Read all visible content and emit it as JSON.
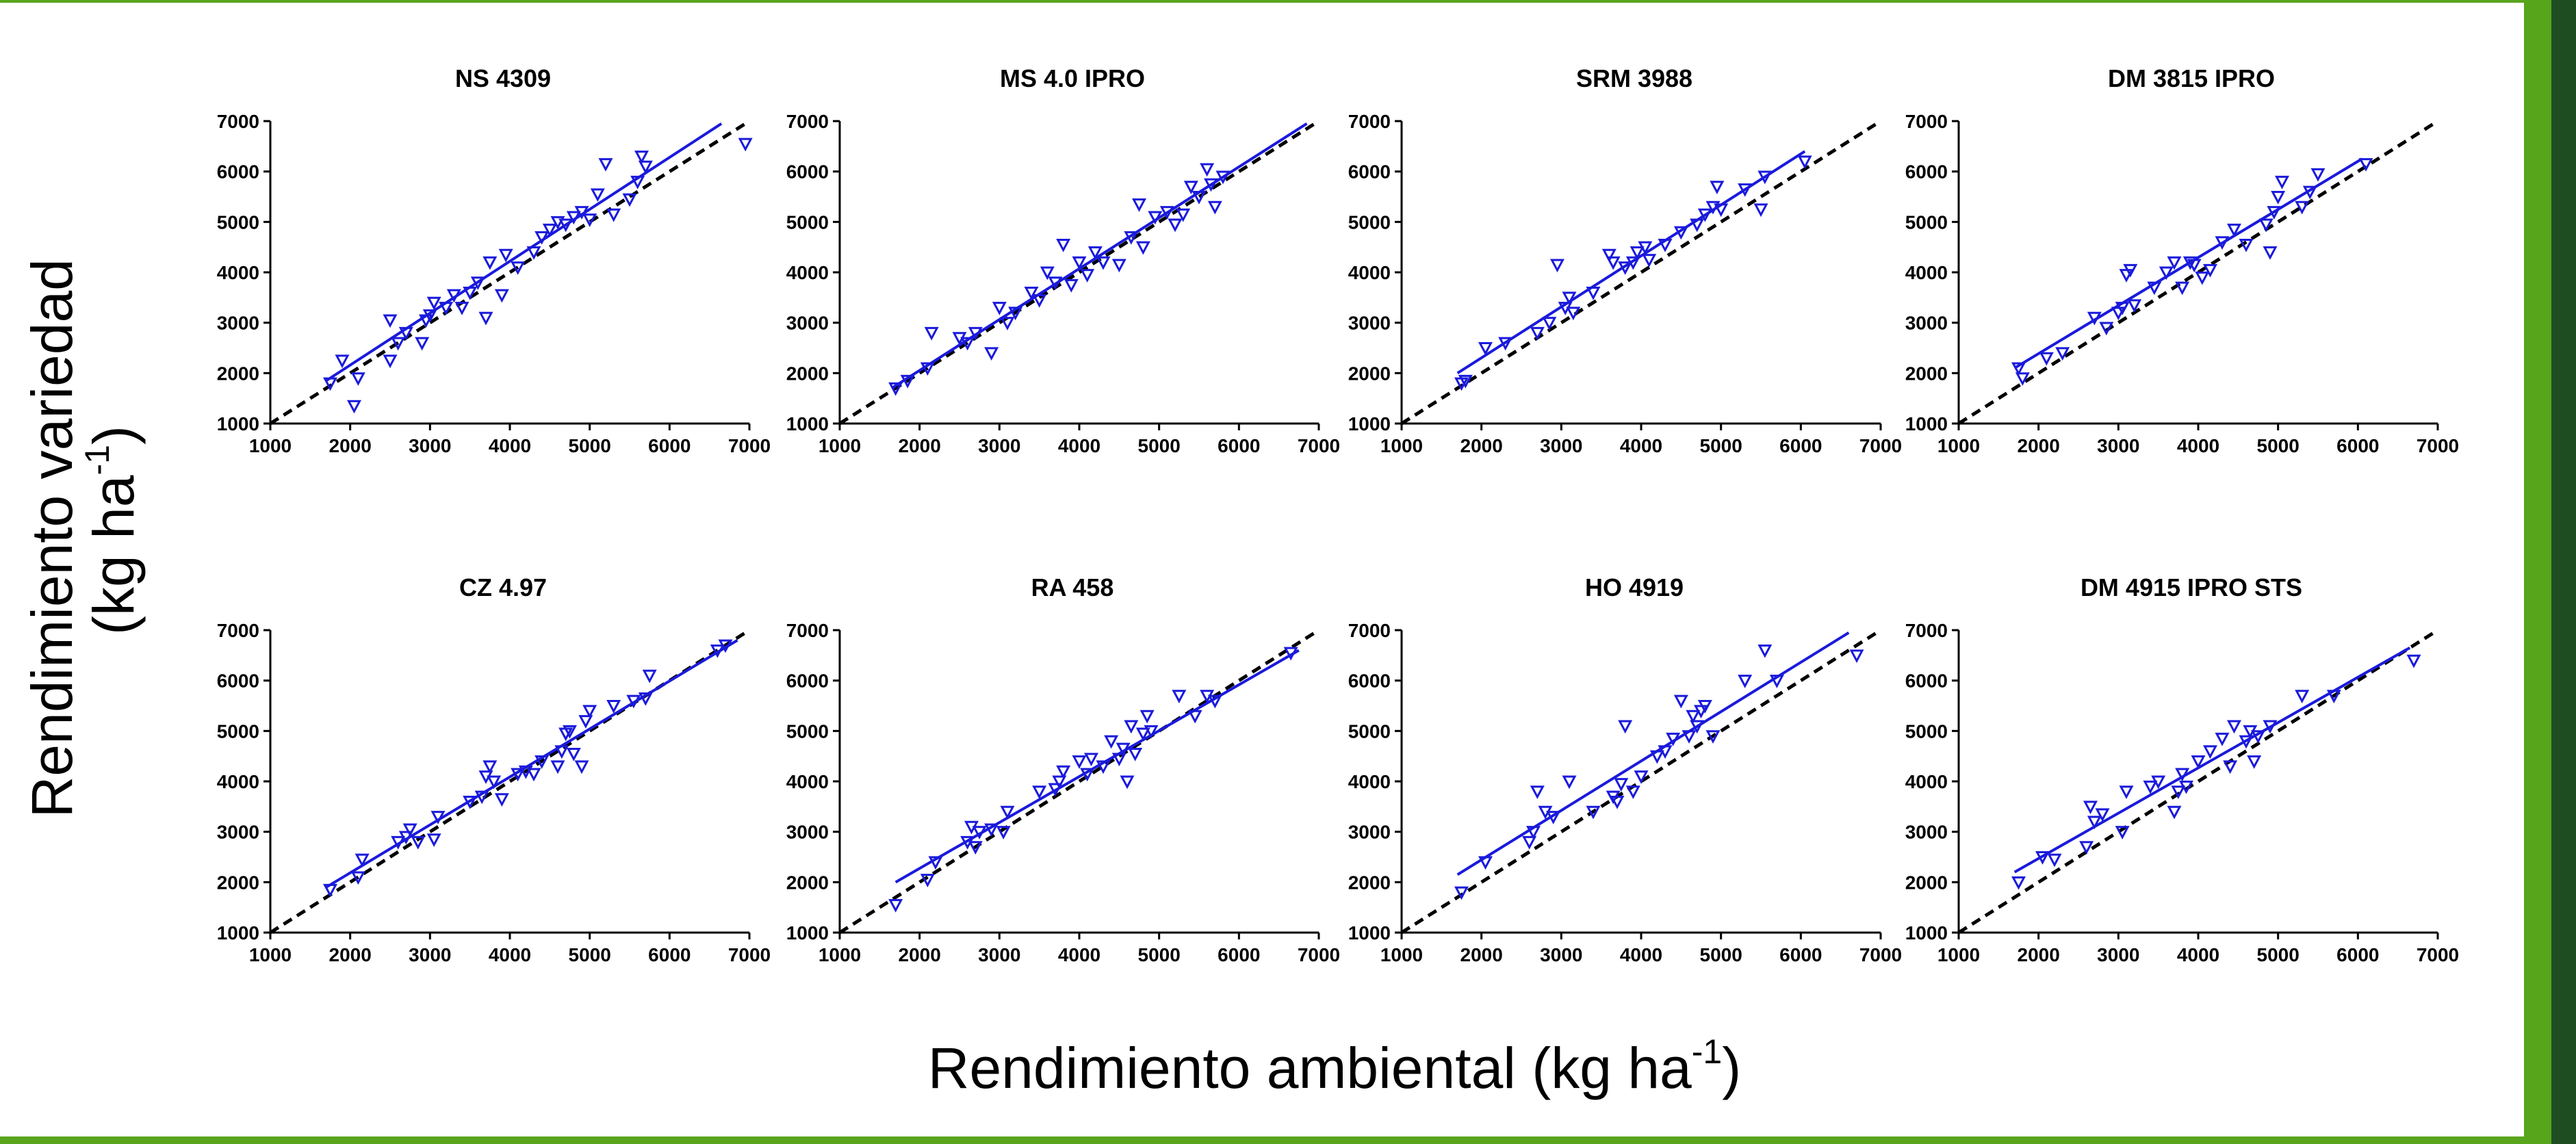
{
  "figure": {
    "ylabel_line1": "Rendimiento variedad",
    "ylabel_line2_prefix": "(kg ha",
    "ylabel_sup": "-1",
    "ylabel_suffix": ")",
    "xlabel_prefix": "Rendimiento ambiental (kg ha",
    "xlabel_sup": "-1",
    "xlabel_suffix": ")"
  },
  "colors": {
    "series": "#1a1adc",
    "reference_line": "#000000",
    "accent_green": "#5aa51e",
    "accent_dark_green": "#1f4d22"
  },
  "chart_data": [
    {
      "type": "scatter",
      "title": "NS 4309",
      "xlim": [
        1000,
        7000
      ],
      "ylim": [
        1000,
        7000
      ],
      "xticks": [
        1000,
        2000,
        3000,
        4000,
        5000,
        6000,
        7000
      ],
      "yticks": [
        1000,
        2000,
        3000,
        4000,
        5000,
        6000,
        7000
      ],
      "reference_line": {
        "style": "dashed",
        "from": [
          1000,
          1000
        ],
        "to": [
          7000,
          7000
        ]
      },
      "fit_line": {
        "from": [
          1700,
          1850
        ],
        "to": [
          6650,
          6950
        ]
      },
      "points": [
        [
          1750,
          1800
        ],
        [
          1900,
          2250
        ],
        [
          2050,
          1350
        ],
        [
          2100,
          1900
        ],
        [
          2500,
          2250
        ],
        [
          2500,
          3050
        ],
        [
          2600,
          2600
        ],
        [
          2700,
          2800
        ],
        [
          2900,
          2600
        ],
        [
          2950,
          3050
        ],
        [
          3000,
          3150
        ],
        [
          3050,
          3400
        ],
        [
          3200,
          3300
        ],
        [
          3300,
          3550
        ],
        [
          3400,
          3300
        ],
        [
          3500,
          3600
        ],
        [
          3600,
          3800
        ],
        [
          3700,
          3100
        ],
        [
          3750,
          4200
        ],
        [
          3900,
          3550
        ],
        [
          3950,
          4350
        ],
        [
          4100,
          4100
        ],
        [
          4300,
          4400
        ],
        [
          4400,
          4700
        ],
        [
          4500,
          4850
        ],
        [
          4600,
          5000
        ],
        [
          4700,
          4950
        ],
        [
          4800,
          5100
        ],
        [
          4900,
          5200
        ],
        [
          5000,
          5050
        ],
        [
          5100,
          5550
        ],
        [
          5200,
          6150
        ],
        [
          5300,
          5150
        ],
        [
          5500,
          5450
        ],
        [
          5600,
          5800
        ],
        [
          5650,
          6300
        ],
        [
          5700,
          6100
        ],
        [
          6950,
          6550
        ]
      ]
    },
    {
      "type": "scatter",
      "title": "MS 4.0 IPRO",
      "xlim": [
        1000,
        7000
      ],
      "ylim": [
        1000,
        7000
      ],
      "xticks": [
        1000,
        2000,
        3000,
        4000,
        5000,
        6000,
        7000
      ],
      "yticks": [
        1000,
        2000,
        3000,
        4000,
        5000,
        6000,
        7000
      ],
      "reference_line": {
        "style": "dashed",
        "from": [
          1000,
          1000
        ],
        "to": [
          7000,
          7000
        ]
      },
      "fit_line": {
        "from": [
          1650,
          1700
        ],
        "to": [
          6850,
          6950
        ]
      },
      "points": [
        [
          1700,
          1700
        ],
        [
          1850,
          1850
        ],
        [
          2100,
          2100
        ],
        [
          2150,
          2800
        ],
        [
          2500,
          2700
        ],
        [
          2600,
          2600
        ],
        [
          2700,
          2800
        ],
        [
          2900,
          2400
        ],
        [
          3000,
          3300
        ],
        [
          3100,
          3000
        ],
        [
          3200,
          3200
        ],
        [
          3400,
          3600
        ],
        [
          3500,
          3450
        ],
        [
          3600,
          4000
        ],
        [
          3700,
          3800
        ],
        [
          3800,
          4550
        ],
        [
          3900,
          3750
        ],
        [
          4000,
          4200
        ],
        [
          4100,
          3950
        ],
        [
          4200,
          4400
        ],
        [
          4300,
          4200
        ],
        [
          4500,
          4150
        ],
        [
          4650,
          4700
        ],
        [
          4750,
          5350
        ],
        [
          4800,
          4500
        ],
        [
          4950,
          5100
        ],
        [
          5100,
          5200
        ],
        [
          5200,
          4950
        ],
        [
          5300,
          5150
        ],
        [
          5400,
          5700
        ],
        [
          5500,
          5500
        ],
        [
          5600,
          6050
        ],
        [
          5650,
          5750
        ],
        [
          5700,
          5300
        ],
        [
          5800,
          5900
        ]
      ]
    },
    {
      "type": "scatter",
      "title": "SRM 3988",
      "xlim": [
        1000,
        7000
      ],
      "ylim": [
        1000,
        7000
      ],
      "xticks": [
        1000,
        2000,
        3000,
        4000,
        5000,
        6000,
        7000
      ],
      "yticks": [
        1000,
        2000,
        3000,
        4000,
        5000,
        6000,
        7000
      ],
      "reference_line": {
        "style": "dashed",
        "from": [
          1000,
          1000
        ],
        "to": [
          7000,
          7000
        ]
      },
      "fit_line": {
        "from": [
          1700,
          2000
        ],
        "to": [
          6050,
          6400
        ]
      },
      "points": [
        [
          1750,
          1800
        ],
        [
          1800,
          1850
        ],
        [
          2050,
          2500
        ],
        [
          2300,
          2600
        ],
        [
          2700,
          2800
        ],
        [
          2850,
          3000
        ],
        [
          2950,
          4150
        ],
        [
          3050,
          3300
        ],
        [
          3100,
          3500
        ],
        [
          3150,
          3200
        ],
        [
          3400,
          3600
        ],
        [
          3600,
          4350
        ],
        [
          3650,
          4200
        ],
        [
          3800,
          4100
        ],
        [
          3900,
          4200
        ],
        [
          3950,
          4400
        ],
        [
          4050,
          4500
        ],
        [
          4100,
          4250
        ],
        [
          4300,
          4550
        ],
        [
          4500,
          4800
        ],
        [
          4700,
          4950
        ],
        [
          4800,
          5150
        ],
        [
          4900,
          5300
        ],
        [
          4950,
          5700
        ],
        [
          5000,
          5250
        ],
        [
          5300,
          5650
        ],
        [
          5500,
          5250
        ],
        [
          5550,
          5900
        ],
        [
          6050,
          6200
        ]
      ]
    },
    {
      "type": "scatter",
      "title": "DM 3815 IPRO",
      "xlim": [
        1000,
        7000
      ],
      "ylim": [
        1000,
        7000
      ],
      "xticks": [
        1000,
        2000,
        3000,
        4000,
        5000,
        6000,
        7000
      ],
      "yticks": [
        1000,
        2000,
        3000,
        4000,
        5000,
        6000,
        7000
      ],
      "reference_line": {
        "style": "dashed",
        "from": [
          1000,
          1000
        ],
        "to": [
          7000,
          7000
        ]
      },
      "fit_line": {
        "from": [
          1700,
          2100
        ],
        "to": [
          6050,
          6250
        ]
      },
      "points": [
        [
          1750,
          2100
        ],
        [
          1800,
          1900
        ],
        [
          2100,
          2300
        ],
        [
          2300,
          2400
        ],
        [
          2700,
          3100
        ],
        [
          2850,
          2900
        ],
        [
          3000,
          3200
        ],
        [
          3050,
          3300
        ],
        [
          3100,
          3950
        ],
        [
          3150,
          4050
        ],
        [
          3200,
          3350
        ],
        [
          3450,
          3700
        ],
        [
          3600,
          4000
        ],
        [
          3700,
          4200
        ],
        [
          3800,
          3700
        ],
        [
          3900,
          4200
        ],
        [
          3950,
          4150
        ],
        [
          4050,
          3900
        ],
        [
          4150,
          4050
        ],
        [
          4300,
          4600
        ],
        [
          4450,
          4850
        ],
        [
          4600,
          4550
        ],
        [
          4850,
          4950
        ],
        [
          4900,
          4400
        ],
        [
          4950,
          5200
        ],
        [
          5000,
          5500
        ],
        [
          5050,
          5800
        ],
        [
          5300,
          5300
        ],
        [
          5400,
          5600
        ],
        [
          5500,
          5950
        ],
        [
          6100,
          6150
        ]
      ]
    },
    {
      "type": "scatter",
      "title": "CZ 4.97",
      "xlim": [
        1000,
        7000
      ],
      "ylim": [
        1000,
        7000
      ],
      "xticks": [
        1000,
        2000,
        3000,
        4000,
        5000,
        6000,
        7000
      ],
      "yticks": [
        1000,
        2000,
        3000,
        4000,
        5000,
        6000,
        7000
      ],
      "reference_line": {
        "style": "dashed",
        "from": [
          1000,
          1000
        ],
        "to": [
          7000,
          7000
        ]
      },
      "fit_line": {
        "from": [
          1700,
          1900
        ],
        "to": [
          6850,
          6800
        ]
      },
      "points": [
        [
          1750,
          1850
        ],
        [
          2100,
          2100
        ],
        [
          2150,
          2450
        ],
        [
          2600,
          2800
        ],
        [
          2700,
          2900
        ],
        [
          2750,
          3050
        ],
        [
          2850,
          2800
        ],
        [
          3050,
          2850
        ],
        [
          3100,
          3300
        ],
        [
          3500,
          3600
        ],
        [
          3650,
          3700
        ],
        [
          3700,
          4100
        ],
        [
          3750,
          4300
        ],
        [
          3800,
          4000
        ],
        [
          3900,
          3650
        ],
        [
          4100,
          4150
        ],
        [
          4200,
          4200
        ],
        [
          4300,
          4150
        ],
        [
          4400,
          4400
        ],
        [
          4600,
          4300
        ],
        [
          4650,
          4600
        ],
        [
          4700,
          4950
        ],
        [
          4750,
          5000
        ],
        [
          4800,
          4550
        ],
        [
          4900,
          4300
        ],
        [
          4950,
          5200
        ],
        [
          5000,
          5400
        ],
        [
          5300,
          5500
        ],
        [
          5550,
          5600
        ],
        [
          5700,
          5650
        ],
        [
          5750,
          6100
        ],
        [
          6600,
          6600
        ],
        [
          6700,
          6700
        ]
      ]
    },
    {
      "type": "scatter",
      "title": "RA 458",
      "xlim": [
        1000,
        7000
      ],
      "ylim": [
        1000,
        7000
      ],
      "xticks": [
        1000,
        2000,
        3000,
        4000,
        5000,
        6000,
        7000
      ],
      "yticks": [
        1000,
        2000,
        3000,
        4000,
        5000,
        6000,
        7000
      ],
      "reference_line": {
        "style": "dashed",
        "from": [
          1000,
          1000
        ],
        "to": [
          7000,
          7000
        ]
      },
      "fit_line": {
        "from": [
          1700,
          2000
        ],
        "to": [
          6750,
          6600
        ]
      },
      "points": [
        [
          1700,
          1550
        ],
        [
          2100,
          2050
        ],
        [
          2200,
          2400
        ],
        [
          2600,
          2800
        ],
        [
          2650,
          3100
        ],
        [
          2700,
          2700
        ],
        [
          2750,
          3000
        ],
        [
          2900,
          3050
        ],
        [
          3050,
          3000
        ],
        [
          3100,
          3400
        ],
        [
          3500,
          3800
        ],
        [
          3700,
          3850
        ],
        [
          3750,
          4000
        ],
        [
          3800,
          4200
        ],
        [
          4000,
          4400
        ],
        [
          4100,
          4150
        ],
        [
          4150,
          4450
        ],
        [
          4300,
          4300
        ],
        [
          4400,
          4800
        ],
        [
          4500,
          4450
        ],
        [
          4550,
          4650
        ],
        [
          4600,
          4000
        ],
        [
          4650,
          5100
        ],
        [
          4700,
          4550
        ],
        [
          4800,
          4950
        ],
        [
          4850,
          5300
        ],
        [
          4900,
          5000
        ],
        [
          5250,
          5700
        ],
        [
          5450,
          5300
        ],
        [
          5600,
          5700
        ],
        [
          5700,
          5600
        ],
        [
          6650,
          6550
        ]
      ]
    },
    {
      "type": "scatter",
      "title": "HO 4919",
      "xlim": [
        1000,
        7000
      ],
      "ylim": [
        1000,
        7000
      ],
      "xticks": [
        1000,
        2000,
        3000,
        4000,
        5000,
        6000,
        7000
      ],
      "yticks": [
        1000,
        2000,
        3000,
        4000,
        5000,
        6000,
        7000
      ],
      "reference_line": {
        "style": "dashed",
        "from": [
          1000,
          1000
        ],
        "to": [
          7000,
          7000
        ]
      },
      "fit_line": {
        "from": [
          1700,
          2150
        ],
        "to": [
          6600,
          6950
        ]
      },
      "points": [
        [
          1750,
          1800
        ],
        [
          2050,
          2400
        ],
        [
          2600,
          2800
        ],
        [
          2650,
          3000
        ],
        [
          2700,
          3800
        ],
        [
          2800,
          3400
        ],
        [
          2900,
          3300
        ],
        [
          3100,
          4000
        ],
        [
          3400,
          3400
        ],
        [
          3650,
          3700
        ],
        [
          3700,
          3600
        ],
        [
          3750,
          3950
        ],
        [
          3800,
          5100
        ],
        [
          3900,
          3800
        ],
        [
          4000,
          4100
        ],
        [
          4200,
          4500
        ],
        [
          4300,
          4600
        ],
        [
          4400,
          4850
        ],
        [
          4500,
          5600
        ],
        [
          4600,
          4900
        ],
        [
          4650,
          5300
        ],
        [
          4700,
          5100
        ],
        [
          4750,
          5400
        ],
        [
          4800,
          5500
        ],
        [
          4900,
          4900
        ],
        [
          5300,
          6000
        ],
        [
          5550,
          6600
        ],
        [
          5700,
          6000
        ],
        [
          6700,
          6500
        ]
      ]
    },
    {
      "type": "scatter",
      "title": "DM 4915 IPRO STS",
      "xlim": [
        1000,
        7000
      ],
      "ylim": [
        1000,
        7000
      ],
      "xticks": [
        1000,
        2000,
        3000,
        4000,
        5000,
        6000,
        7000
      ],
      "yticks": [
        1000,
        2000,
        3000,
        4000,
        5000,
        6000,
        7000
      ],
      "reference_line": {
        "style": "dashed",
        "from": [
          1000,
          1000
        ],
        "to": [
          7000,
          7000
        ]
      },
      "fit_line": {
        "from": [
          1700,
          2200
        ],
        "to": [
          6650,
          6650
        ]
      },
      "points": [
        [
          1750,
          2000
        ],
        [
          2050,
          2500
        ],
        [
          2200,
          2450
        ],
        [
          2600,
          2700
        ],
        [
          2650,
          3500
        ],
        [
          2700,
          3200
        ],
        [
          2800,
          3350
        ],
        [
          3050,
          3000
        ],
        [
          3100,
          3800
        ],
        [
          3400,
          3900
        ],
        [
          3500,
          4000
        ],
        [
          3700,
          3400
        ],
        [
          3750,
          3800
        ],
        [
          3800,
          4150
        ],
        [
          3850,
          3900
        ],
        [
          4000,
          4400
        ],
        [
          4150,
          4600
        ],
        [
          4300,
          4850
        ],
        [
          4400,
          4300
        ],
        [
          4450,
          5100
        ],
        [
          4600,
          4800
        ],
        [
          4650,
          5000
        ],
        [
          4700,
          4400
        ],
        [
          4750,
          4900
        ],
        [
          4900,
          5100
        ],
        [
          5300,
          5700
        ],
        [
          5700,
          5700
        ],
        [
          6700,
          6400
        ]
      ]
    }
  ]
}
